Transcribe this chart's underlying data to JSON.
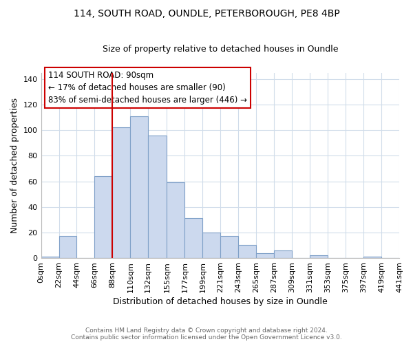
{
  "title1": "114, SOUTH ROAD, OUNDLE, PETERBOROUGH, PE8 4BP",
  "title2": "Size of property relative to detached houses in Oundle",
  "xlabel": "Distribution of detached houses by size in Oundle",
  "ylabel": "Number of detached properties",
  "bar_color": "#ccd9ee",
  "bar_edge_color": "#7fa0c8",
  "bin_edges": [
    0,
    22,
    44,
    66,
    88,
    110,
    132,
    155,
    177,
    199,
    221,
    243,
    265,
    287,
    309,
    331,
    353,
    375,
    397,
    419,
    441
  ],
  "bar_heights": [
    1,
    17,
    0,
    64,
    102,
    111,
    96,
    59,
    31,
    20,
    17,
    10,
    4,
    6,
    0,
    2,
    0,
    0,
    1,
    0
  ],
  "tick_labels": [
    "0sqm",
    "22sqm",
    "44sqm",
    "66sqm",
    "88sqm",
    "110sqm",
    "132sqm",
    "155sqm",
    "177sqm",
    "199sqm",
    "221sqm",
    "243sqm",
    "265sqm",
    "287sqm",
    "309sqm",
    "331sqm",
    "353sqm",
    "375sqm",
    "397sqm",
    "419sqm",
    "441sqm"
  ],
  "ylim": [
    0,
    145
  ],
  "yticks": [
    0,
    20,
    40,
    60,
    80,
    100,
    120,
    140
  ],
  "vline_x": 88,
  "vline_color": "#cc0000",
  "annotation_title": "114 SOUTH ROAD: 90sqm",
  "annotation_line1": "← 17% of detached houses are smaller (90)",
  "annotation_line2": "83% of semi-detached houses are larger (446) →",
  "footer1": "Contains HM Land Registry data © Crown copyright and database right 2024.",
  "footer2": "Contains public sector information licensed under the Open Government Licence v3.0.",
  "background_color": "#ffffff",
  "grid_color": "#d0dcea"
}
